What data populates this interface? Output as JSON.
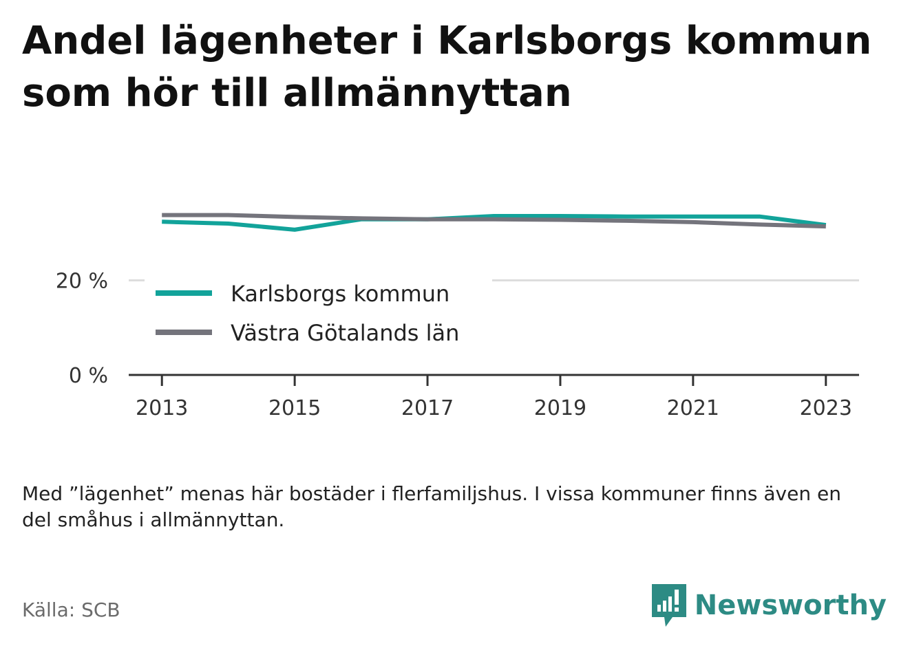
{
  "title": "Andel lägenheter i Karlsborgs kommun som hör till allmännyttan",
  "note": "Med ”lägenhet” menas här bostäder i flerfamiljshus. I vissa kommuner finns även en del småhus i allmännyttan.",
  "source": "Källa: SCB",
  "brand": "Newsworthy",
  "colors": {
    "karlsborg": "#12a39a",
    "vastra_gotaland": "#74747c",
    "brand": "#2d8b84",
    "grid": "#dddddd",
    "axis": "#333333"
  },
  "chart_data": {
    "type": "line",
    "title": "Andel lägenheter i Karlsborgs kommun som hör till allmännyttan",
    "x": [
      2013,
      2014,
      2015,
      2016,
      2017,
      2018,
      2019,
      2020,
      2021,
      2022,
      2023
    ],
    "x_tick_labels": [
      "2013",
      "2015",
      "2017",
      "2019",
      "2021",
      "2023"
    ],
    "x_ticks": [
      2013,
      2015,
      2017,
      2019,
      2021,
      2023
    ],
    "y_tick_labels": [
      "0 %",
      "20 %"
    ],
    "y_ticks": [
      0,
      20
    ],
    "ylim": [
      0,
      40
    ],
    "xlim": [
      2012.5,
      2023.5
    ],
    "grid": true,
    "legend_position": "inside-bottom-left",
    "series": [
      {
        "name": "Karlsborgs kommun",
        "color": "#12a39a",
        "values": [
          32.4,
          32.0,
          30.7,
          32.9,
          32.9,
          33.6,
          33.6,
          33.5,
          33.5,
          33.5,
          31.7
        ]
      },
      {
        "name": "Västra Götalands län",
        "color": "#74747c",
        "values": [
          33.8,
          33.8,
          33.4,
          33.1,
          32.9,
          32.9,
          32.8,
          32.6,
          32.3,
          31.8,
          31.4
        ]
      }
    ]
  }
}
